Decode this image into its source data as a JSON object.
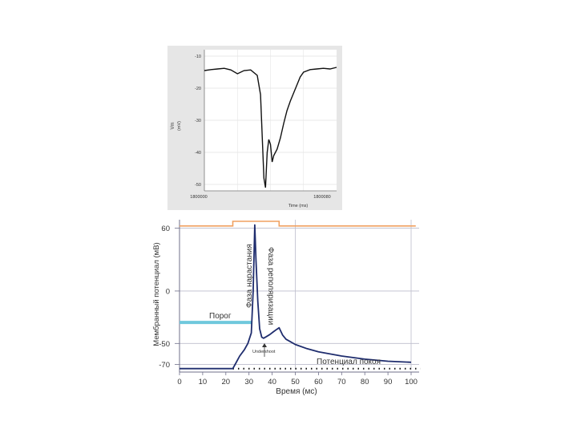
{
  "chart_data": [
    {
      "type": "line",
      "ylabel_name": "Vm",
      "ylabel_unit": "(mV)",
      "xlabel": "Time (ms)",
      "xlim": [
        1800000,
        1800080
      ],
      "ylim": [
        -52,
        -8
      ],
      "y_ticks": [
        "-10",
        "-20",
        "-30",
        "-40",
        "-50"
      ],
      "x_tick_left": "1800000",
      "x_tick_right": "1800080",
      "grid": true,
      "line_color": "#111111",
      "series": [
        {
          "x": [
            1800000,
            1800004,
            1800008,
            1800012,
            1800016,
            1800020,
            1800024,
            1800028,
            1800032,
            1800034,
            1800035,
            1800036,
            1800037,
            1800038,
            1800039,
            1800040,
            1800041,
            1800042,
            1800044,
            1800046,
            1800048,
            1800050,
            1800052,
            1800054,
            1800056,
            1800058,
            1800060,
            1800064,
            1800068,
            1800072,
            1800076,
            1800080
          ],
          "y": [
            -14.5,
            -14.2,
            -14,
            -13.8,
            -14.3,
            -15.5,
            -14.5,
            -14.3,
            -16,
            -22,
            -35,
            -48,
            -51,
            -40,
            -36,
            -37.5,
            -43,
            -41,
            -39,
            -35.5,
            -31,
            -27,
            -24,
            -21.5,
            -19,
            -16.5,
            -15,
            -14.2,
            -14,
            -13.8,
            -14,
            -13.5
          ]
        }
      ]
    },
    {
      "type": "line",
      "ylabel": "Мембранный потенциал (мВ)",
      "xlabel": "Время (мс)",
      "xlim": [
        0,
        100
      ],
      "ylim": [
        -75,
        68
      ],
      "x_ticks": [
        0,
        10,
        20,
        30,
        40,
        50,
        60,
        70,
        80,
        90,
        100
      ],
      "y_ticks": [
        60,
        0,
        -50,
        -70
      ],
      "y_tick_labels": [
        "60",
        "0",
        "-50",
        "-70"
      ],
      "grid": true,
      "series": [
        {
          "color": "#1f2d6e",
          "x": [
            0,
            23,
            24,
            26,
            28,
            29.5,
            31,
            31.8,
            32.5,
            33,
            33.8,
            34.6,
            35.5,
            36.3,
            37.5,
            39,
            40.5,
            42,
            43,
            44.5,
            46,
            48,
            50,
            55,
            60,
            70,
            80,
            90,
            100
          ],
          "y": [
            -74,
            -74,
            -70,
            -62,
            -56,
            -50,
            -40,
            0,
            63,
            30,
            -10,
            -36,
            -44,
            -45,
            -43.5,
            -41.5,
            -39,
            -36.5,
            -35,
            -42,
            -46,
            -48.5,
            -51,
            -55,
            -58,
            -62,
            -65,
            -67,
            -68
          ]
        },
        {
          "color": "#f0a060",
          "x": [
            0,
            23,
            23,
            43,
            43,
            102
          ],
          "y": [
            62,
            62,
            66.5,
            66.5,
            62,
            62
          ]
        }
      ],
      "threshold_line": {
        "value": -30,
        "x_range": [
          0,
          31
        ],
        "color": "#6fc8dc"
      },
      "resting_line": {
        "value": -74,
        "x_range": [
          0,
          104
        ],
        "dotted_from": 23
      },
      "annotations": {
        "threshold": "Порог",
        "rising_phase": "Фаза нарастания",
        "repolarization_phase": "Фаза реполяризации",
        "undershoot": "Undershoot",
        "resting_potential": "Потенциал покоя"
      },
      "colors": {
        "grid": "#bdbdcc",
        "axis": "#6f6f8a",
        "text": "#333333"
      }
    }
  ]
}
